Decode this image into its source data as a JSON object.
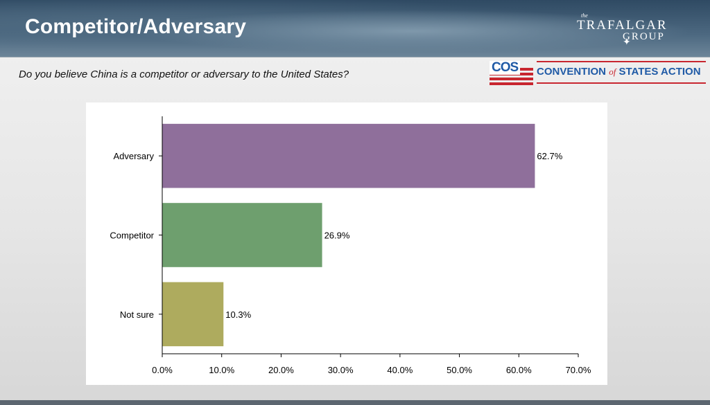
{
  "header": {
    "title": "Competitor/Adversary",
    "brand_small": "the",
    "brand_line1": "TRAFALGAR",
    "brand_line2": "GROUP"
  },
  "question": "Do you believe China is a competitor or adversary to the United States?",
  "cos_logo": {
    "letters": "COS",
    "name_part1": "CONVENTION",
    "name_of": "of",
    "name_part2": "STATES ACTION",
    "red": "#c8262f",
    "blue": "#1f5aa6"
  },
  "chart_data": {
    "type": "bar",
    "orientation": "horizontal",
    "categories": [
      "Adversary",
      "Competitor",
      "Not sure"
    ],
    "values": [
      62.7,
      26.9,
      10.3
    ],
    "value_labels": [
      "62.7%",
      "26.9%",
      "10.3%"
    ],
    "colors": [
      "#8f6f9b",
      "#6e9f6e",
      "#aeab5e"
    ],
    "xlim": [
      0,
      70
    ],
    "xticks": [
      0,
      10,
      20,
      30,
      40,
      50,
      60,
      70
    ],
    "xtick_labels": [
      "0.0%",
      "10.0%",
      "20.0%",
      "30.0%",
      "40.0%",
      "50.0%",
      "60.0%",
      "70.0%"
    ],
    "grid": false,
    "legend": "none"
  }
}
